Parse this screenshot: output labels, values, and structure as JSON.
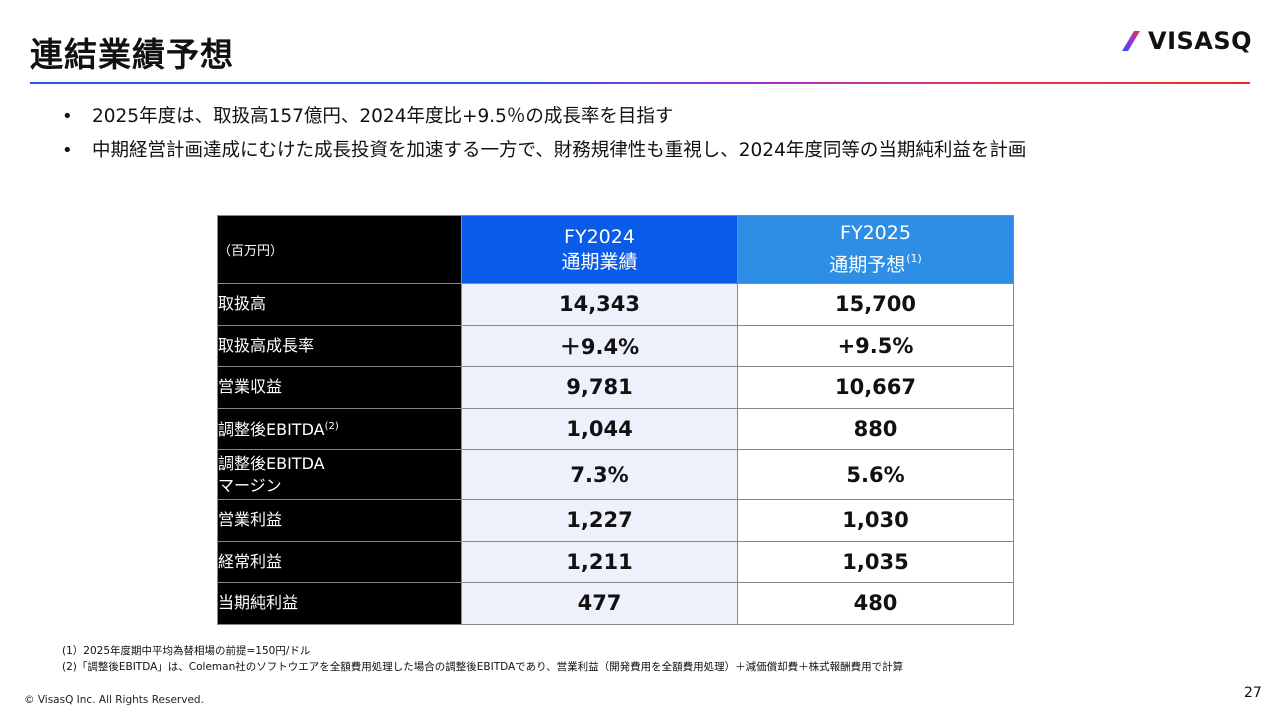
{
  "page": {
    "title": "連結業績予想",
    "logo_text": "VISASQ",
    "page_number": "27",
    "copyright": "© VisasQ Inc. All Rights Reserved."
  },
  "bullets": [
    "2025年度は、取扱高157億円、2024年度比+9.5％の成長率を目指す",
    "中期経営計画達成にむけた成長投資を加速する一方で、財務規律性も重視し、2024年度同等の当期純利益を計画"
  ],
  "table": {
    "unit_label": "（百万円）",
    "columns": [
      {
        "line1": "FY2024",
        "line2": "通期業績",
        "note": ""
      },
      {
        "line1": "FY2025",
        "line2": "通期予想",
        "note": "(1)"
      }
    ],
    "rows": [
      {
        "label": "取扱高",
        "label2": "",
        "note": "",
        "fy2024": "14,343",
        "fy2025": "15,700"
      },
      {
        "label": "取扱高成長率",
        "label2": "",
        "note": "",
        "fy2024": "＋9.4%",
        "fy2025": "+9.5%"
      },
      {
        "label": "営業収益",
        "label2": "",
        "note": "",
        "fy2024": "9,781",
        "fy2025": "10,667"
      },
      {
        "label": "調整後EBITDA",
        "label2": "",
        "note": "(2)",
        "fy2024": "1,044",
        "fy2025": "880"
      },
      {
        "label": "調整後EBITDA",
        "label2": "マージン",
        "note": "",
        "fy2024": "7.3%",
        "fy2025": "5.6%"
      },
      {
        "label": "営業利益",
        "label2": "",
        "note": "",
        "fy2024": "1,227",
        "fy2025": "1,030"
      },
      {
        "label": "経常利益",
        "label2": "",
        "note": "",
        "fy2024": "1,211",
        "fy2025": "1,035"
      },
      {
        "label": "当期純利益",
        "label2": "",
        "note": "",
        "fy2024": "477",
        "fy2025": "480"
      }
    ]
  },
  "footnotes": [
    "(1）2025年度期中平均為替相場の前提=150円/ドル",
    "(2)「調整後EBITDA」は、Coleman社のソフトウエアを全額費用処理した場合の調整後EBITDAであり、営業利益（開発費用を全額費用処理）＋減価償却費＋株式報酬費用で計算"
  ],
  "colors": {
    "header_fy2024": "#0a5ce8",
    "header_fy2025": "#2e8ee6",
    "label_bg": "#000000",
    "fy2024_cell_bg": "#eef0fb",
    "logo_slash_blue": "#2a55e6",
    "logo_slash_red": "#e8321e"
  }
}
